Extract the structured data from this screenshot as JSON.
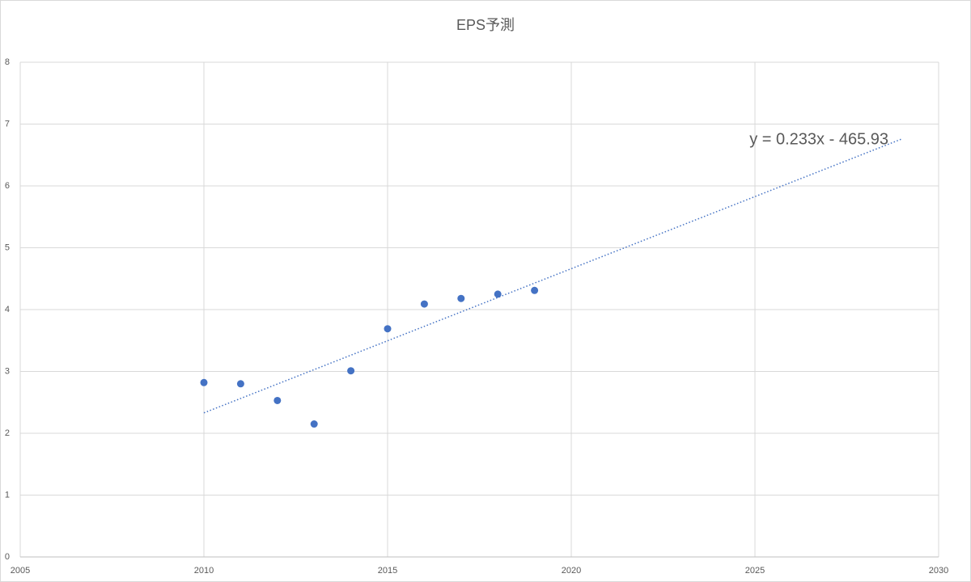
{
  "chart_data": {
    "type": "scatter",
    "title": "EPS予測",
    "series": [
      {
        "color": "#4472c4",
        "x": [
          2010,
          2011,
          2012,
          2013,
          2014,
          2015,
          2016,
          2017,
          2018,
          2019
        ],
        "values": [
          2.82,
          2.8,
          2.53,
          2.15,
          3.01,
          3.69,
          4.09,
          4.18,
          4.25,
          4.31
        ]
      }
    ],
    "trendline": {
      "color": "#4472c4",
      "x": [
        2010,
        2029
      ],
      "values": [
        2.33,
        6.76
      ],
      "annotation": "y = 0.233x - 465.93"
    },
    "xlim": [
      2005,
      2030
    ],
    "xticks": [
      2005,
      2010,
      2015,
      2020,
      2025,
      2030
    ],
    "ylim": [
      0,
      8
    ],
    "yticks": [
      0,
      1,
      2,
      3,
      4,
      5,
      6,
      7,
      8
    ],
    "grid": true
  }
}
